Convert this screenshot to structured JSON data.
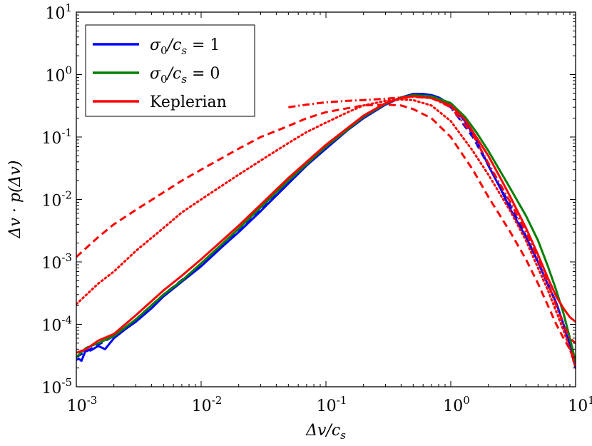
{
  "chart_data": {
    "type": "line",
    "xscale": "log",
    "yscale": "log",
    "xlim": [
      0.001,
      10
    ],
    "ylim": [
      1e-05,
      10
    ],
    "xlabel": "Δv/c_s",
    "ylabel": "Δv · p(Δv)",
    "x_ticks": [
      {
        "base": "10",
        "exp": "-3",
        "value": 0.001
      },
      {
        "base": "10",
        "exp": "-2",
        "value": 0.01
      },
      {
        "base": "10",
        "exp": "-1",
        "value": 0.1
      },
      {
        "base": "10",
        "exp": "0",
        "value": 1
      },
      {
        "base": "10",
        "exp": "1",
        "value": 10
      }
    ],
    "y_ticks": [
      {
        "base": "10",
        "exp": "-5",
        "value": 1e-05
      },
      {
        "base": "10",
        "exp": "-4",
        "value": 0.0001
      },
      {
        "base": "10",
        "exp": "-3",
        "value": 0.001
      },
      {
        "base": "10",
        "exp": "-2",
        "value": 0.01
      },
      {
        "base": "10",
        "exp": "-1",
        "value": 0.1
      },
      {
        "base": "10",
        "exp": "0",
        "value": 1
      },
      {
        "base": "10",
        "exp": "1",
        "value": 10
      }
    ],
    "legend": {
      "placement": "top-left",
      "entries": [
        {
          "label_main": "σ",
          "label_sub": "0",
          "label_rest": "/c",
          "label_sub2": "s",
          "label_tail": " = 1",
          "color": "#0000ff"
        },
        {
          "label_main": "σ",
          "label_sub": "0",
          "label_rest": "/c",
          "label_sub2": "s",
          "label_tail": " = 0",
          "color": "#008000"
        },
        {
          "label_main": "Keplerian",
          "label_sub": "",
          "label_rest": "",
          "label_sub2": "",
          "label_tail": "",
          "color": "#ff0000"
        }
      ]
    },
    "series": [
      {
        "name": "sigma0/cs=1 solid",
        "color": "#0000ff",
        "style": "solid",
        "x": [
          0.001,
          0.00105,
          0.0011,
          0.0012,
          0.0013,
          0.0015,
          0.0017,
          0.002,
          0.0025,
          0.003,
          0.004,
          0.005,
          0.007,
          0.01,
          0.015,
          0.02,
          0.03,
          0.05,
          0.07,
          0.1,
          0.15,
          0.2,
          0.3,
          0.4,
          0.5,
          0.6,
          0.7,
          0.8,
          1.0,
          1.3,
          1.6,
          2,
          2.5,
          3,
          4,
          5,
          6,
          7,
          8,
          9,
          10
        ],
        "y": [
          2.7e-05,
          2.8e-05,
          2.6e-05,
          4e-05,
          3.8e-05,
          4.5e-05,
          4e-05,
          6e-05,
          8.5e-05,
          0.00011,
          0.00018,
          0.00028,
          0.00048,
          0.00085,
          0.0018,
          0.003,
          0.0065,
          0.018,
          0.035,
          0.065,
          0.13,
          0.2,
          0.33,
          0.43,
          0.49,
          0.49,
          0.47,
          0.43,
          0.33,
          0.18,
          0.09,
          0.035,
          0.015,
          0.007,
          0.0025,
          0.001,
          0.00043,
          0.00022,
          0.0001,
          4.5e-05,
          2e-05
        ]
      },
      {
        "name": "sigma0/cs=1 dashed",
        "color": "#0000ff",
        "style": "dashed",
        "x": [
          0.001,
          0.002,
          0.003,
          0.005,
          0.01,
          0.02,
          0.05,
          0.1,
          0.2,
          0.3,
          0.4,
          0.5,
          0.7,
          1.0,
          1.5,
          2,
          3,
          4,
          5,
          6,
          7,
          8,
          9,
          10
        ],
        "y": [
          3e-05,
          6.5e-05,
          0.00012,
          0.0003,
          0.0009,
          0.0032,
          0.019,
          0.068,
          0.21,
          0.34,
          0.43,
          0.47,
          0.45,
          0.3,
          0.1,
          0.035,
          0.008,
          0.0026,
          0.001,
          0.00045,
          0.00022,
          0.0001,
          5e-05,
          2.5e-05
        ]
      },
      {
        "name": "sigma0/cs=0 solid",
        "color": "#008000",
        "style": "solid",
        "x": [
          0.001,
          0.0012,
          0.0015,
          0.002,
          0.003,
          0.005,
          0.007,
          0.01,
          0.02,
          0.05,
          0.1,
          0.2,
          0.3,
          0.4,
          0.5,
          0.7,
          1.0,
          1.3,
          1.6,
          2,
          2.5,
          3,
          4,
          5,
          6,
          7,
          8,
          9,
          10
        ],
        "y": [
          3e-05,
          4.2e-05,
          5e-05,
          6.5e-05,
          0.00012,
          0.0003,
          0.0005,
          0.00095,
          0.0034,
          0.02,
          0.07,
          0.21,
          0.34,
          0.43,
          0.47,
          0.45,
          0.35,
          0.21,
          0.12,
          0.06,
          0.028,
          0.015,
          0.0055,
          0.0022,
          0.00085,
          0.00035,
          0.00015,
          6e-05,
          2.5e-05
        ]
      },
      {
        "name": "Keplerian solid",
        "color": "#ff0000",
        "style": "solid",
        "x": [
          0.001,
          0.0012,
          0.0015,
          0.002,
          0.003,
          0.005,
          0.007,
          0.01,
          0.02,
          0.05,
          0.1,
          0.2,
          0.3,
          0.4,
          0.5,
          0.7,
          1.0,
          1.3,
          1.6,
          2,
          2.5,
          3,
          4,
          5,
          6,
          7,
          8,
          9,
          10
        ],
        "y": [
          3.5e-05,
          4e-05,
          5.5e-05,
          7e-05,
          0.00014,
          0.00035,
          0.0006,
          0.0011,
          0.0038,
          0.022,
          0.075,
          0.22,
          0.35,
          0.42,
          0.45,
          0.42,
          0.32,
          0.19,
          0.1,
          0.05,
          0.022,
          0.011,
          0.0035,
          0.0013,
          0.00055,
          0.00028,
          0.00018,
          0.00013,
          0.00011
        ]
      },
      {
        "name": "Keplerian dashed",
        "color": "#ff0000",
        "style": "dashed",
        "x": [
          0.001,
          0.0015,
          0.002,
          0.003,
          0.005,
          0.007,
          0.01,
          0.02,
          0.03,
          0.05,
          0.07,
          0.1,
          0.15,
          0.2,
          0.3,
          0.4,
          0.5,
          0.7,
          1.0,
          1.5,
          2,
          3,
          4,
          5,
          6,
          7,
          8,
          9,
          10
        ],
        "y": [
          0.0012,
          0.0025,
          0.004,
          0.0068,
          0.013,
          0.02,
          0.03,
          0.065,
          0.1,
          0.15,
          0.2,
          0.25,
          0.29,
          0.32,
          0.33,
          0.32,
          0.28,
          0.2,
          0.1,
          0.03,
          0.011,
          0.003,
          0.0011,
          0.00045,
          0.0002,
          0.0001,
          6e-05,
          4e-05,
          2.5e-05
        ]
      },
      {
        "name": "Keplerian dotted",
        "color": "#ff0000",
        "style": "dotted",
        "x": [
          0.001,
          0.0015,
          0.002,
          0.003,
          0.005,
          0.007,
          0.01,
          0.02,
          0.03,
          0.05,
          0.07,
          0.1,
          0.15,
          0.2,
          0.3,
          0.4,
          0.5,
          0.7,
          1.0,
          1.5,
          2,
          3,
          4,
          5,
          6,
          7,
          8,
          9,
          10
        ],
        "y": [
          0.00021,
          0.00045,
          0.0007,
          0.0015,
          0.0035,
          0.0062,
          0.01,
          0.025,
          0.042,
          0.08,
          0.12,
          0.17,
          0.25,
          0.32,
          0.38,
          0.4,
          0.39,
          0.32,
          0.18,
          0.06,
          0.025,
          0.0065,
          0.0022,
          0.0008,
          0.00035,
          0.00016,
          8e-05,
          4e-05,
          2e-05
        ]
      },
      {
        "name": "Keplerian dashdot",
        "color": "#ff0000",
        "style": "dashdot",
        "x": [
          0.05,
          0.07,
          0.1,
          0.15,
          0.2,
          0.3,
          0.4,
          0.5,
          0.7,
          1.0,
          1.5,
          2,
          3,
          4,
          5,
          6,
          7,
          8,
          9,
          10
        ],
        "y": [
          0.3,
          0.33,
          0.36,
          0.38,
          0.39,
          0.41,
          0.43,
          0.44,
          0.42,
          0.3,
          0.11,
          0.038,
          0.009,
          0.003,
          0.0011,
          0.00045,
          0.0002,
          0.0001,
          6e-05,
          5e-05
        ]
      }
    ]
  }
}
